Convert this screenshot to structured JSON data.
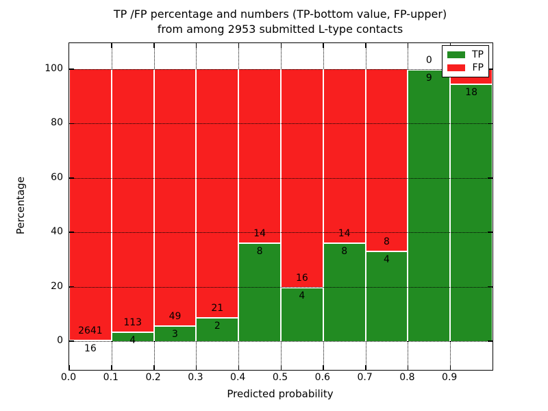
{
  "title": {
    "line1": "TP /FP percentage and numbers (TP-bottom value, FP-upper)",
    "line2": "from among 2953 submitted L-type contacts"
  },
  "axes": {
    "xlabel": "Predicted probability",
    "ylabel": "Percentage",
    "x_tick_labels": [
      "0.0",
      "0.1",
      "0.2",
      "0.3",
      "0.4",
      "0.5",
      "0.6",
      "0.7",
      "0.8",
      "0.9"
    ],
    "y_tick_labels": [
      "0",
      "20",
      "40",
      "60",
      "80",
      "100"
    ],
    "y_tick_values": [
      0,
      20,
      40,
      60,
      80,
      100
    ],
    "xlim": [
      0.0,
      1.0
    ],
    "ylim": [
      -10.6,
      109.6
    ],
    "grid": true
  },
  "legend": {
    "position": "upper right",
    "items": [
      {
        "label": "TP",
        "color": "#228b22"
      },
      {
        "label": "FP",
        "color": "#f81f1f"
      }
    ]
  },
  "colors": {
    "tp": "#228b22",
    "fp": "#f81f1f",
    "background": "#ffffff",
    "text": "#000000"
  },
  "chart_data": {
    "type": "bar",
    "stacked": true,
    "bin_edges": [
      0.0,
      0.1,
      0.2,
      0.3,
      0.4,
      0.5,
      0.6,
      0.7,
      0.8,
      0.9,
      1.0
    ],
    "series": [
      {
        "name": "TP",
        "color": "#228b22",
        "counts": [
          16,
          4,
          3,
          2,
          8,
          4,
          8,
          4,
          9,
          18
        ]
      },
      {
        "name": "FP",
        "color": "#f81f1f",
        "counts": [
          2641,
          113,
          49,
          21,
          14,
          16,
          14,
          8,
          0,
          null
        ]
      }
    ],
    "bars": [
      {
        "bin": "0.0-0.1",
        "tp": 16,
        "fp": 2641,
        "tp_pct": 0.6,
        "fp_pct": 99.4,
        "fp_label": "2641",
        "tp_label": "16"
      },
      {
        "bin": "0.1-0.2",
        "tp": 4,
        "fp": 113,
        "tp_pct": 3.42,
        "fp_pct": 96.58,
        "fp_label": "113",
        "tp_label": "4"
      },
      {
        "bin": "0.2-0.3",
        "tp": 3,
        "fp": 49,
        "tp_pct": 5.77,
        "fp_pct": 94.23,
        "fp_label": "49",
        "tp_label": "3"
      },
      {
        "bin": "0.3-0.4",
        "tp": 2,
        "fp": 21,
        "tp_pct": 8.7,
        "fp_pct": 91.3,
        "fp_label": "21",
        "tp_label": "2"
      },
      {
        "bin": "0.4-0.5",
        "tp": 8,
        "fp": 14,
        "tp_pct": 36.36,
        "fp_pct": 63.64,
        "fp_label": "14",
        "tp_label": "8"
      },
      {
        "bin": "0.5-0.6",
        "tp": 4,
        "fp": 16,
        "tp_pct": 20.0,
        "fp_pct": 80.0,
        "fp_label": "16",
        "tp_label": "4"
      },
      {
        "bin": "0.6-0.7",
        "tp": 8,
        "fp": 14,
        "tp_pct": 36.36,
        "fp_pct": 63.64,
        "fp_label": "14",
        "tp_label": "8"
      },
      {
        "bin": "0.7-0.8",
        "tp": 4,
        "fp": 8,
        "tp_pct": 33.33,
        "fp_pct": 66.67,
        "fp_label": "8",
        "tp_label": "4"
      },
      {
        "bin": "0.8-0.9",
        "tp": 9,
        "fp": 0,
        "tp_pct": 100.0,
        "fp_pct": 0.0,
        "fp_label": "0",
        "tp_label": "9"
      },
      {
        "bin": "0.9-1.0",
        "tp": 18,
        "fp": null,
        "tp_pct": 94.74,
        "fp_pct": 5.26,
        "fp_label": "",
        "tp_label": "18"
      }
    ]
  }
}
